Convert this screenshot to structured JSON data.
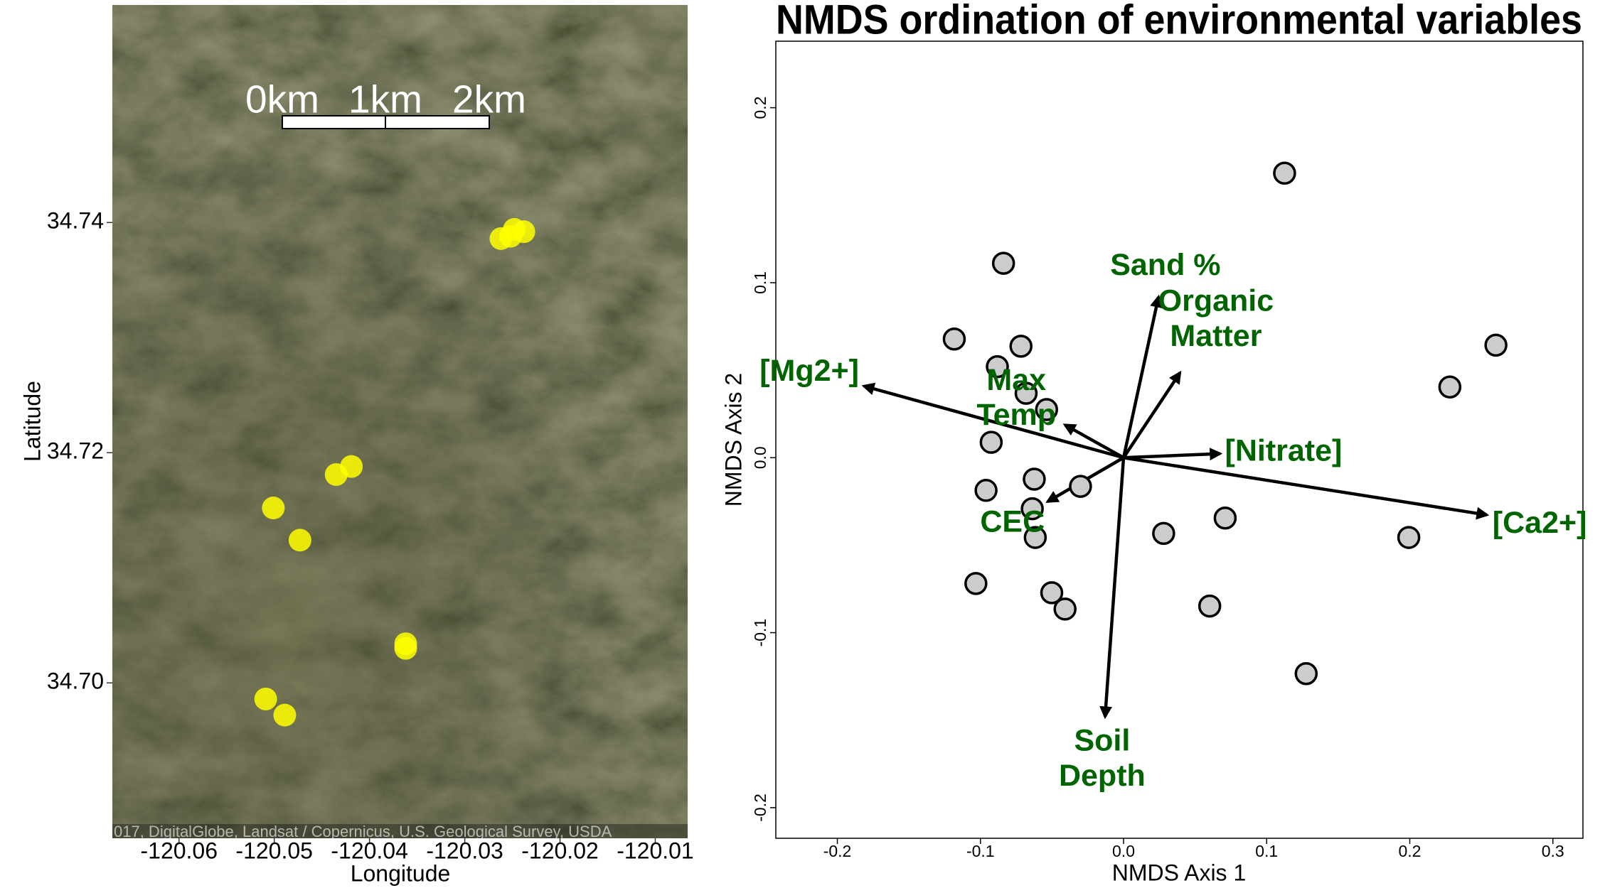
{
  "chart_data": [
    {
      "type": "scatter",
      "xlabel": "Longitude",
      "ylabel": "Latitude",
      "x": [
        -120.0262,
        -120.0248,
        -120.0238,
        -120.0252,
        -120.0419,
        -120.0435,
        -120.0501,
        -120.0473,
        -120.0362,
        -120.0362,
        -120.0509,
        -120.0489
      ],
      "y": [
        34.7386,
        34.7394,
        34.7392,
        34.7388,
        34.7188,
        34.7181,
        34.7152,
        34.7124,
        34.7034,
        34.703,
        34.6986,
        34.6972
      ],
      "color": "#ffff00",
      "xlim": [
        -120.067,
        -120.0066
      ],
      "ylim": [
        34.6865,
        34.7589
      ],
      "xticks": [
        -120.06,
        -120.05,
        -120.04,
        -120.03,
        -120.02,
        -120.01
      ],
      "yticks": [
        {
          "value": 34.7,
          "label": "34.70"
        },
        34.72,
        34.74
      ],
      "scale_bar": {
        "labels": [
          "0km",
          "1km",
          "2km"
        ]
      },
      "attribution": "017, DigitalGlobe, Landsat / Copernicus, U.S. Geological Survey, USDA"
    },
    {
      "type": "scatter",
      "title": "NMDS ordination of environmental variables",
      "xlabel": "NMDS Axis 1",
      "ylabel": "NMDS Axis 2",
      "x": [
        0.1125,
        -0.0839,
        -0.1183,
        -0.0717,
        -0.0882,
        -0.0681,
        -0.0538,
        -0.0925,
        -0.0624,
        -0.0301,
        -0.0961,
        -0.0638,
        -0.0617,
        0.028,
        0.071,
        0.1993,
        0.2602,
        0.228,
        -0.1032,
        -0.0502,
        -0.0409,
        0.0602,
        0.1276
      ],
      "y": [
        0.1626,
        0.1111,
        0.0678,
        0.0637,
        0.052,
        0.0368,
        0.0275,
        0.0088,
        -0.0123,
        -0.0164,
        -0.0187,
        -0.0292,
        -0.0456,
        -0.0433,
        -0.0345,
        -0.0456,
        0.0643,
        0.0404,
        -0.0719,
        -0.0772,
        -0.0865,
        -0.0848,
        -0.1234
      ],
      "color": "#cccccc",
      "vectors": [
        {
          "label": [
            "Sand %"
          ],
          "x": 0.0244,
          "y": 0.0918
        },
        {
          "label": [
            "Organic",
            "Matter"
          ],
          "x": 0.0394,
          "y": 0.0485
        },
        {
          "label": [
            "Max",
            "Temp"
          ],
          "x": -0.0409,
          "y": 0.0187
        },
        {
          "label": [
            "[Mg2+]"
          ],
          "x": -0.1814,
          "y": 0.0409
        },
        {
          "label": [
            "[Nitrate]"
          ],
          "x": 0.0674,
          "y": 0.0023
        },
        {
          "label": [
            "[Ca2+]"
          ],
          "x": 0.2538,
          "y": -0.0327
        },
        {
          "label": [
            "CEC"
          ],
          "x": -0.053,
          "y": -0.0251
        },
        {
          "label": [
            "Soil",
            "Depth"
          ],
          "x": -0.0129,
          "y": -0.148
        }
      ],
      "vector_label_color": "#006400",
      "xlim": [
        -0.243,
        0.321
      ],
      "ylim": [
        -0.2175,
        0.238
      ],
      "xticks": [
        -0.2,
        -0.1,
        {
          "value": 0,
          "label": "0.0"
        },
        0.1,
        0.2,
        0.3
      ],
      "yticks": [
        -0.2,
        -0.1,
        {
          "value": 0,
          "label": "0.0"
        },
        0.1,
        0.2
      ]
    }
  ]
}
